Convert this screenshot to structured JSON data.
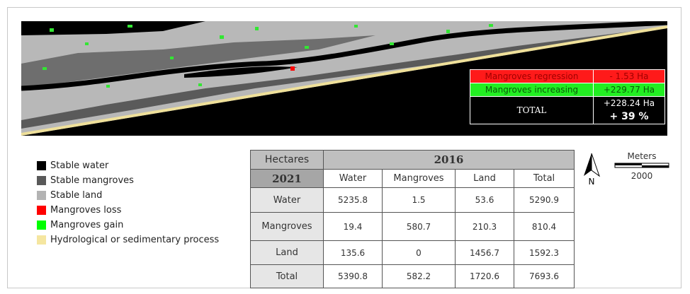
{
  "map_overlay": {
    "rows": [
      [
        "Mangroves regression",
        "- 1.53 Ha"
      ],
      [
        "Mangroves increasing",
        "+229.77 Ha"
      ],
      [
        "TOTAL",
        "+228.24 Ha",
        "+ 39 %"
      ]
    ]
  },
  "legend": [
    {
      "label": "Stable water",
      "color": "#000000"
    },
    {
      "label": "Stable mangroves",
      "color": "#595959"
    },
    {
      "label": "Stable land",
      "color": "#b3b3b3"
    },
    {
      "label": "Mangroves loss",
      "color": "#ff0000"
    },
    {
      "label": "Mangroves gain",
      "color": "#00ff00"
    },
    {
      "label": "Hydrological or sedimentary process",
      "color": "#f5e6a0"
    }
  ],
  "table": {
    "corner_top": "Hectares",
    "corner_bottom": "2021",
    "column_group": "2016",
    "columns": [
      "Water",
      "Mangroves",
      "Land",
      "Total"
    ],
    "rows": [
      {
        "label": "Water",
        "values": [
          5235.8,
          1.5,
          53.6,
          5290.9
        ]
      },
      {
        "label": "Mangroves",
        "values": [
          19.4,
          580.7,
          210.3,
          810.4
        ]
      },
      {
        "label": "Land",
        "values": [
          135.6,
          0,
          1456.7,
          1592.3
        ]
      },
      {
        "label": "Total",
        "values": [
          5390.8,
          582.2,
          1720.6,
          7693.6
        ]
      }
    ]
  },
  "north": "N",
  "scale_bar": {
    "title": "Meters",
    "value": "2000"
  }
}
